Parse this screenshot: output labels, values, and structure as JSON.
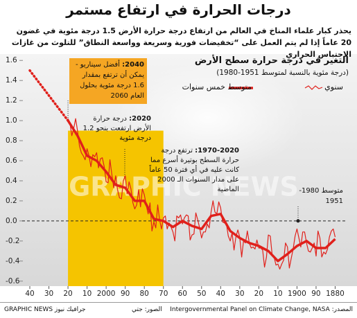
{
  "chart_data": {
    "type": "line",
    "title": "درجات الحرارة في ارتفاع مستمر",
    "subtitle": "يحذر كبار علماء المناخ في العالم من ارتفاع درجة حرارة الأرض 1.5 درجة مئوية في غضون 20 عاماً إذا لم يتم العمل على “تخفيضات فورية وسريعة وواسعة النطاق” للتلوث من غازات الاحتباس الحراري",
    "chart_title": "التغير في درجة حرارة سطح الأرض",
    "chart_subtitle": "(درجة مئوية بالنسبة لمتوسط 1951-1980)",
    "annotations": [
      {
        "bold": "2040:",
        "text": "أفضل سيناريو - يمكن أن ترتفع بمقدار 1.6 درجة مئوية بحلول العام 2060"
      },
      {
        "bold": "2020:",
        "text": "درجة حرارة الأرض ارتفعت بنحو 1.2 درجة مئوية"
      },
      {
        "bold": "1970-2020:",
        "text": "ترتفع درجة حرارة السطح بوتيرة أسرع مما كانت عليه في أي فترة 50 عاماً على مدار السنوات الـ 2000 الماضية"
      },
      {
        "bold": "",
        "text": "متوسط 1980-1951"
      }
    ],
    "watermark": "GRAPHIC NEWS",
    "source": "المصدر: Intergovernmental Panel on Climate Change, NASA",
    "photo_credit": "الصور: جتي",
    "credit": "GRAPHIC NEWS جرافيك نيوز",
    "xlim": [
      2044,
      1874
    ],
    "ylim": [
      -0.65,
      1.65
    ],
    "xticks": [
      {
        "value": 2040,
        "label": "40"
      },
      {
        "value": 2030,
        "label": "30"
      },
      {
        "value": 2020,
        "label": "20"
      },
      {
        "value": 2010,
        "label": "10"
      },
      2000,
      {
        "value": 1990,
        "label": "90"
      },
      {
        "value": 1980,
        "label": "80"
      },
      {
        "value": 1970,
        "label": "70"
      },
      {
        "value": 1960,
        "label": "60"
      },
      {
        "value": 1950,
        "label": "50"
      },
      {
        "value": 1940,
        "label": "40"
      },
      {
        "value": 1930,
        "label": "30"
      },
      {
        "value": 1920,
        "label": "20"
      },
      {
        "value": 1910,
        "label": "10"
      },
      1900,
      {
        "value": 1890,
        "label": "90"
      },
      1880
    ],
    "yticks": [
      1.6,
      1.4,
      1.2,
      {
        "value": 1.0,
        "label": "1.0"
      },
      0.8,
      0.6,
      0.4,
      0.2,
      {
        "value": 0,
        "label": "0.0"
      },
      -0.2,
      -0.4,
      -0.6
    ],
    "reference_line": 0,
    "highlight_span": [
      1970,
      2020
    ],
    "highlight_top": 0.9,
    "highlight_color": "#f5c400",
    "series": [
      {
        "name": "سنوي",
        "color": "#e0201b",
        "width": 1.2,
        "x": [
          1880,
          1881,
          1882,
          1883,
          1884,
          1885,
          1886,
          1887,
          1888,
          1889,
          1890,
          1891,
          1892,
          1893,
          1894,
          1895,
          1896,
          1897,
          1898,
          1899,
          1900,
          1901,
          1902,
          1903,
          1904,
          1905,
          1906,
          1907,
          1908,
          1909,
          1910,
          1911,
          1912,
          1913,
          1914,
          1915,
          1916,
          1917,
          1918,
          1919,
          1920,
          1921,
          1922,
          1923,
          1924,
          1925,
          1926,
          1927,
          1928,
          1929,
          1930,
          1931,
          1932,
          1933,
          1934,
          1935,
          1936,
          1937,
          1938,
          1939,
          1940,
          1941,
          1942,
          1943,
          1944,
          1945,
          1946,
          1947,
          1948,
          1949,
          1950,
          1951,
          1952,
          1953,
          1954,
          1955,
          1956,
          1957,
          1958,
          1959,
          1960,
          1961,
          1962,
          1963,
          1964,
          1965,
          1966,
          1967,
          1968,
          1969,
          1970,
          1971,
          1972,
          1973,
          1974,
          1975,
          1976,
          1977,
          1978,
          1979,
          1980,
          1981,
          1982,
          1983,
          1984,
          1985,
          1986,
          1987,
          1988,
          1989,
          1990,
          1991,
          1992,
          1993,
          1994,
          1995,
          1996,
          1997,
          1998,
          1999,
          2000,
          2001,
          2002,
          2003,
          2004,
          2005,
          2006,
          2007,
          2008,
          2009,
          2010,
          2011,
          2012,
          2013,
          2014,
          2015,
          2016,
          2017,
          2018,
          2019,
          2020
        ],
        "values": [
          -0.16,
          -0.08,
          -0.1,
          -0.16,
          -0.28,
          -0.33,
          -0.31,
          -0.36,
          -0.17,
          -0.1,
          -0.35,
          -0.22,
          -0.27,
          -0.31,
          -0.3,
          -0.22,
          -0.11,
          -0.11,
          -0.26,
          -0.17,
          -0.08,
          -0.15,
          -0.28,
          -0.37,
          -0.47,
          -0.26,
          -0.22,
          -0.39,
          -0.43,
          -0.48,
          -0.43,
          -0.44,
          -0.36,
          -0.34,
          -0.15,
          -0.14,
          -0.36,
          -0.46,
          -0.29,
          -0.27,
          -0.27,
          -0.19,
          -0.28,
          -0.26,
          -0.27,
          -0.22,
          -0.1,
          -0.22,
          -0.2,
          -0.36,
          -0.16,
          -0.09,
          -0.16,
          -0.29,
          -0.12,
          -0.2,
          -0.15,
          -0.03,
          -0.02,
          -0.01,
          0.13,
          0.19,
          0.07,
          0.09,
          0.2,
          0.09,
          -0.07,
          -0.03,
          -0.11,
          -0.11,
          -0.17,
          -0.07,
          0.01,
          0.08,
          -0.13,
          -0.14,
          -0.19,
          0.05,
          0.06,
          0.03,
          -0.03,
          0.06,
          0.03,
          0.05,
          -0.2,
          -0.11,
          -0.06,
          -0.02,
          -0.08,
          0.05,
          0.03,
          -0.08,
          0.01,
          0.16,
          -0.07,
          -0.01,
          -0.1,
          0.18,
          0.07,
          0.16,
          0.26,
          0.32,
          0.14,
          0.31,
          0.16,
          0.12,
          0.18,
          0.32,
          0.39,
          0.27,
          0.45,
          0.4,
          0.22,
          0.23,
          0.31,
          0.45,
          0.33,
          0.46,
          0.61,
          0.38,
          0.39,
          0.54,
          0.63,
          0.62,
          0.53,
          0.68,
          0.64,
          0.66,
          0.54,
          0.65,
          0.72,
          0.61,
          0.65,
          0.68,
          0.75,
          0.9,
          1.02,
          0.92,
          0.85,
          0.98,
          1.02
        ]
      },
      {
        "name": "متوسط خمس سنوات",
        "color": "#e0201b",
        "width": 3.5,
        "x": [
          1880,
          1885,
          1890,
          1895,
          1900,
          1905,
          1910,
          1915,
          1920,
          1925,
          1930,
          1935,
          1940,
          1945,
          1950,
          1955,
          1960,
          1965,
          1970,
          1975,
          1980,
          1985,
          1990,
          1995,
          2000,
          2005,
          2010,
          2015,
          2020
        ],
        "values": [
          -0.18,
          -0.27,
          -0.27,
          -0.2,
          -0.25,
          -0.33,
          -0.4,
          -0.3,
          -0.25,
          -0.22,
          -0.17,
          -0.1,
          0.07,
          0.05,
          -0.08,
          -0.05,
          0.0,
          -0.06,
          0.0,
          0.02,
          0.2,
          0.2,
          0.33,
          0.36,
          0.49,
          0.6,
          0.65,
          0.85,
          1.0
        ]
      }
    ],
    "projection": {
      "color": "#e0201b",
      "x": [
        2020,
        2040
      ],
      "values": [
        1.0,
        1.5
      ]
    },
    "box_color": "#f5a623"
  }
}
